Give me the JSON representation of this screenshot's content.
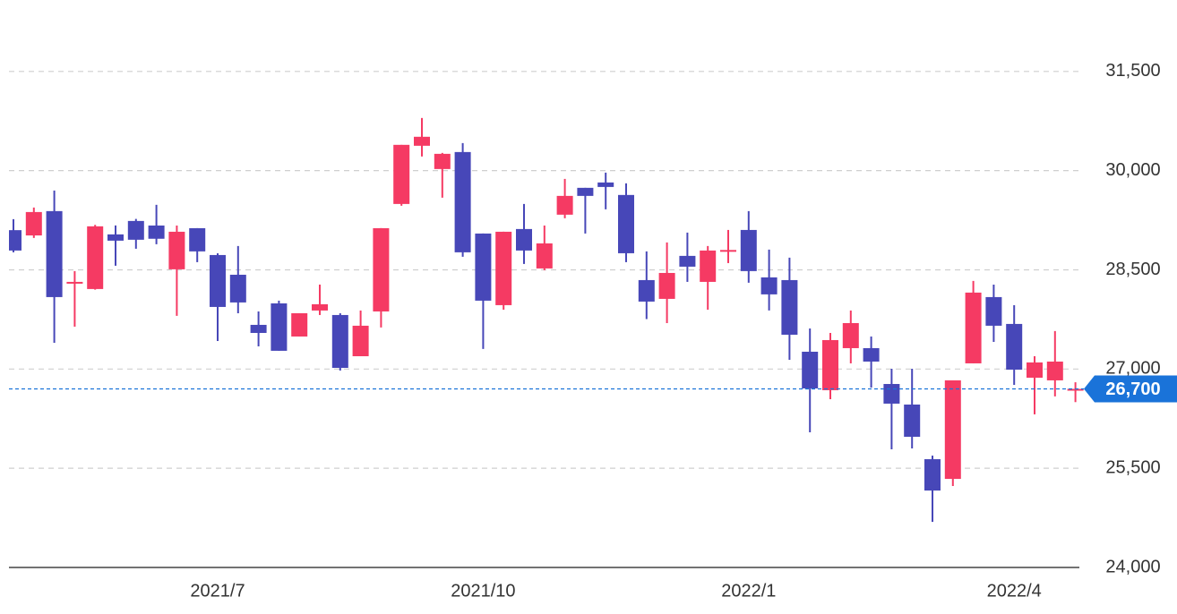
{
  "chart_data": {
    "type": "candlestick",
    "categories": [
      null,
      null,
      null,
      null,
      null,
      null,
      null,
      null,
      null,
      null,
      "2021/7",
      null,
      null,
      null,
      null,
      null,
      null,
      null,
      null,
      null,
      null,
      null,
      null,
      "2021/10",
      null,
      null,
      null,
      null,
      null,
      null,
      null,
      null,
      null,
      null,
      null,
      null,
      "2022/1",
      null,
      null,
      null,
      null,
      null,
      null,
      null,
      null,
      null,
      null,
      null,
      null,
      "2022/4",
      null,
      null,
      null
    ],
    "open": [
      29100,
      29020,
      29388,
      28300,
      28210,
      29036,
      29239,
      29170,
      28508,
      29130,
      28724,
      28426,
      27668,
      27993,
      27492,
      27885,
      27817,
      27194,
      27871,
      29496,
      30376,
      30024,
      30281,
      29049,
      27966,
      29117,
      28521,
      29334,
      29740,
      29821,
      29632,
      28345,
      28061,
      28711,
      28318,
      28790,
      29103,
      28386,
      28345,
      27262,
      26680,
      27316,
      27316,
      26774,
      26463,
      25637,
      25339,
      27086,
      28088,
      27682,
      26869,
      26829,
      26690
    ],
    "high": [
      29266,
      29442,
      29699,
      28481,
      29180,
      29171,
      29270,
      29483,
      29170,
      29130,
      28750,
      28860,
      27871,
      28034,
      27844,
      28277,
      27844,
      27885,
      29130,
      30390,
      30796,
      30268,
      30417,
      29049,
      29076,
      29496,
      29170,
      29875,
      29740,
      29970,
      29808,
      28779,
      28914,
      29063,
      28860,
      29103,
      29388,
      28806,
      28684,
      27614,
      27546,
      27885,
      27492,
      27005,
      27005,
      25691,
      26829,
      28332,
      28277,
      27966,
      27194,
      27574,
      26800
    ],
    "low": [
      28765,
      28982,
      27397,
      27641,
      28200,
      28562,
      28819,
      28887,
      27804,
      28616,
      27424,
      27844,
      27343,
      27276,
      27492,
      27817,
      26978,
      27194,
      27628,
      29469,
      30214,
      29591,
      28697,
      27303,
      27898,
      28589,
      28494,
      29280,
      29049,
      29415,
      28616,
      27756,
      27695,
      28318,
      27898,
      28602,
      28305,
      27885,
      27140,
      26043,
      26544,
      27086,
      26720,
      25786,
      25800,
      24689,
      25231,
      27086,
      27411,
      26761,
      26315,
      26586,
      26500
    ],
    "close": [
      28792,
      29374,
      28088,
      28318,
      29158,
      28941,
      28955,
      28970,
      29076,
      28779,
      27939,
      28007,
      27546,
      27276,
      27844,
      27980,
      27018,
      27655,
      29130,
      30390,
      30512,
      30254,
      28765,
      28034,
      29076,
      28792,
      28900,
      29618,
      29618,
      29753,
      28751,
      28020,
      28453,
      28548,
      28792,
      28800,
      28481,
      28129,
      27519,
      26707,
      27438,
      27695,
      27113,
      26477,
      25976,
      25163,
      26829,
      28156,
      27655,
      26991,
      27100,
      27113,
      26700
    ],
    "up_color": "#f53a63",
    "down_color": "#4747b8",
    "ylim": [
      24000,
      32580
    ],
    "yticks": [
      {
        "value": 24000,
        "label": "24,000"
      },
      {
        "value": 25500,
        "label": "25,500"
      },
      {
        "value": 27000,
        "label": "27,000"
      },
      {
        "value": 28500,
        "label": "28,500"
      },
      {
        "value": 30000,
        "label": "30,000"
      },
      {
        "value": 31500,
        "label": "31,500"
      }
    ],
    "grid": true,
    "last_price": {
      "value": 26700,
      "label": "26,700",
      "color": "#1a73d9"
    }
  }
}
